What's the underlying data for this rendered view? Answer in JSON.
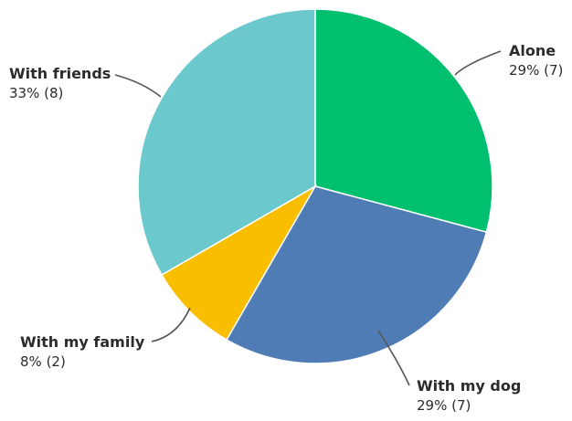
{
  "chart_data": {
    "type": "pie",
    "title": "",
    "slices": [
      {
        "label": "Alone",
        "percent_label": "29% (7)",
        "value": 7,
        "color": "#00BF6F"
      },
      {
        "label": "With my dog",
        "percent_label": "29% (7)",
        "value": 7,
        "color": "#507CB6"
      },
      {
        "label": "With my family",
        "percent_label": "8% (2)",
        "value": 2,
        "color": "#F9BE00"
      },
      {
        "label": "With friends",
        "percent_label": "33% (8)",
        "value": 8,
        "color": "#6BC8CD"
      }
    ]
  }
}
